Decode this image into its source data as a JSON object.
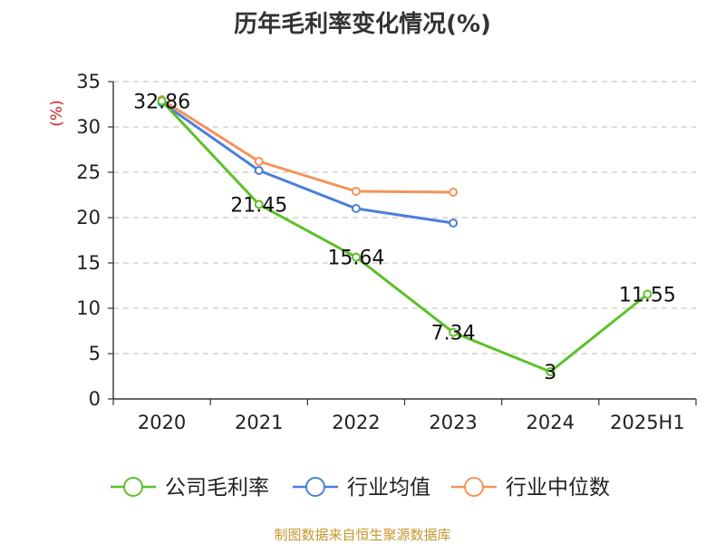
{
  "title": "历年毛利率变化情况(%)",
  "source": "制图数据来自恒生聚源数据库",
  "chart_data": {
    "type": "line",
    "title": "历年毛利率变化情况(%)",
    "ylabel": "(%)",
    "xlabel": "",
    "categories": [
      "2020",
      "2021",
      "2022",
      "2023",
      "2024",
      "2025H1"
    ],
    "ylim": [
      0,
      35
    ],
    "yticks": [
      0,
      5,
      10,
      15,
      20,
      25,
      30,
      35
    ],
    "grid": true,
    "legend_position": "bottom",
    "series": [
      {
        "name": "公司毛利率",
        "color": "#5dc02a",
        "values": [
          32.86,
          21.45,
          15.64,
          7.34,
          3,
          11.55
        ],
        "labels": [
          "32.86",
          "21.45",
          "15.64",
          "7.34",
          "3",
          "11.55"
        ]
      },
      {
        "name": "行业均值",
        "color": "#4a7fdc",
        "values": [
          32.7,
          25.2,
          21.0,
          19.4,
          null,
          null
        ]
      },
      {
        "name": "行业中位数",
        "color": "#f5925a",
        "values": [
          33.0,
          26.2,
          22.9,
          22.8,
          null,
          null
        ]
      }
    ]
  }
}
